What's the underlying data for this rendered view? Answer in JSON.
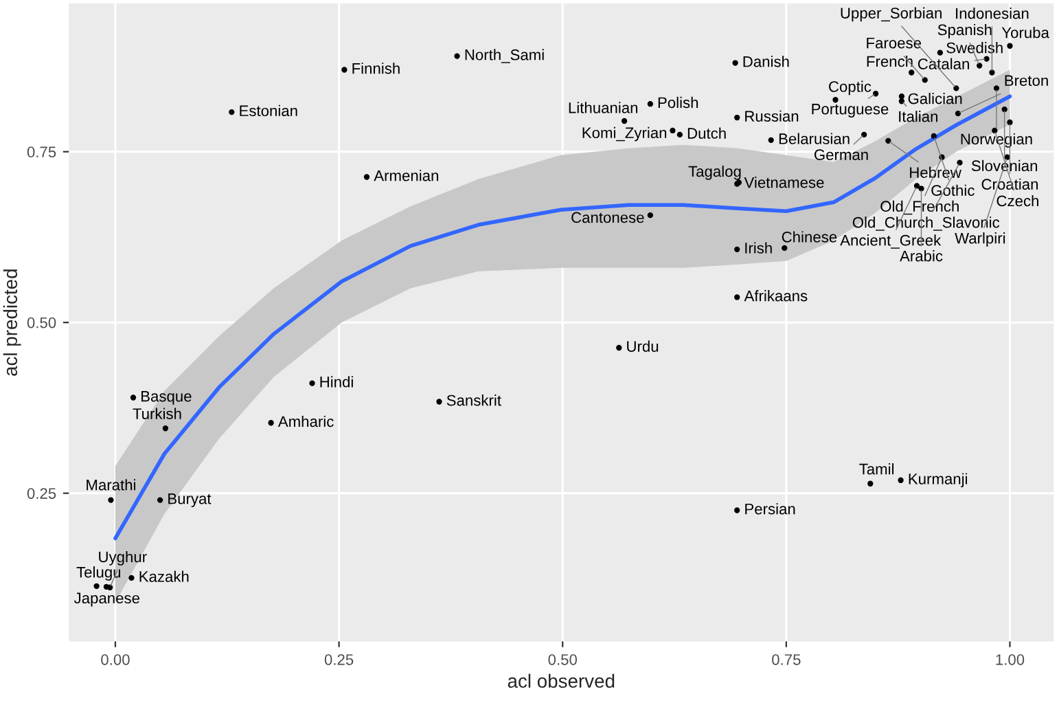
{
  "chart_data": {
    "type": "line",
    "xlabel": "acl observed",
    "ylabel": "acl predicted",
    "xlim": [
      -0.052,
      1.049
    ],
    "ylim": [
      0.033,
      0.967
    ],
    "xticks": [
      {
        "value": 0,
        "label": "0.00"
      },
      {
        "value": 0.25,
        "label": "0.25"
      },
      {
        "value": 0.5,
        "label": "0.50"
      },
      {
        "value": 0.75,
        "label": "0.75"
      },
      {
        "value": 1,
        "label": "1.00"
      }
    ],
    "yticks": [
      {
        "value": 0.25,
        "label": "0.25"
      },
      {
        "value": 0.5,
        "label": "0.50"
      },
      {
        "value": 0.75,
        "label": "0.75"
      }
    ],
    "grid": true,
    "line_style": "solid",
    "series": [
      {
        "marker": "none",
        "color": "#3366ff",
        "x": [
          0,
          0.055,
          0.116,
          0.177,
          0.253,
          0.33,
          0.406,
          0.498,
          0.574,
          0.635,
          0.696,
          0.75,
          0.803,
          0.849,
          0.895,
          0.94,
          1.0
        ],
        "values": [
          0.184,
          0.308,
          0.405,
          0.483,
          0.56,
          0.612,
          0.643,
          0.665,
          0.672,
          0.672,
          0.667,
          0.663,
          0.676,
          0.711,
          0.754,
          0.789,
          0.831
        ],
        "lower": [
          0.09,
          0.22,
          0.33,
          0.42,
          0.5,
          0.55,
          0.575,
          0.58,
          0.58,
          0.58,
          0.585,
          0.59,
          0.62,
          0.66,
          0.71,
          0.75,
          0.79
        ],
        "upper": [
          0.29,
          0.4,
          0.48,
          0.55,
          0.62,
          0.67,
          0.71,
          0.745,
          0.755,
          0.76,
          0.755,
          0.745,
          0.735,
          0.765,
          0.8,
          0.83,
          0.87
        ]
      },
      {
        "type": "scatter",
        "marker": "circle",
        "color": "#000000",
        "x": [
          0.256,
          0.382,
          0.13,
          0.693,
          0.598,
          0.569,
          0.695,
          0.623,
          0.631,
          0.733,
          0.805,
          0.85,
          0.879,
          0.879,
          0.922,
          1.0,
          0.974,
          0.966,
          0.89,
          0.98,
          0.905,
          0.94,
          0.985,
          0.837,
          0.864,
          0.915,
          0.942,
          0.994,
          1.0,
          0.983,
          0.924,
          0.944,
          0.997,
          0.896,
          0.901,
          0.281,
          0.695,
          0.697,
          0.598,
          0.695,
          0.748,
          0.695,
          0.563,
          0.02,
          0.056,
          0.22,
          0.174,
          0.362,
          -0.005,
          0.05,
          0.844,
          0.878,
          0.695,
          0.018,
          -0.021,
          -0.01,
          -0.006
        ],
        "values": [
          0.87,
          0.89,
          0.808,
          0.88,
          0.82,
          0.795,
          0.8,
          0.781,
          0.775,
          0.767,
          0.826,
          0.835,
          0.831,
          0.824,
          0.895,
          0.905,
          0.886,
          0.876,
          0.866,
          0.866,
          0.855,
          0.843,
          0.843,
          0.775,
          0.766,
          0.773,
          0.806,
          0.812,
          0.793,
          0.781,
          0.742,
          0.734,
          0.742,
          0.7,
          0.696,
          0.713,
          0.703,
          0.705,
          0.657,
          0.607,
          0.609,
          0.537,
          0.463,
          0.39,
          0.345,
          0.411,
          0.353,
          0.384,
          0.24,
          0.24,
          0.264,
          0.269,
          0.225,
          0.126,
          0.114,
          0.113,
          0.112
        ],
        "value_labels": [
          "Finnish",
          "North_Sami",
          "Estonian",
          "Danish",
          "Polish",
          "Lithuanian",
          "Russian",
          "Komi_Zyrian",
          "Dutch",
          "Belarusian",
          "Coptic",
          "Portuguese",
          "Galician",
          "Italian",
          "Swedish",
          "Yoruba",
          "Catalan",
          "Spanish",
          "French",
          "Indonesian",
          "Faroese",
          "Upper_Sorbian",
          "Norwegian",
          "German",
          "Hebrew",
          "Gothic",
          "Breton",
          "Slovenian",
          "Croatian",
          "Czech",
          "Old_French",
          "Old_Church_Slavonic",
          "Warlpiri",
          "Ancient_Greek",
          "Arabic",
          "Armenian",
          "Vietnamese",
          "Tagalog",
          "Cantonese",
          "Irish",
          "Chinese",
          "Afrikaans",
          "Urdu",
          "Basque",
          "Turkish",
          "Hindi",
          "Amharic",
          "Sanskrit",
          "Marathi",
          "Buryat",
          "Tamil",
          "Kurmanji",
          "Persian",
          "Kazakh",
          "Japanese",
          "Telugu",
          "Uyghur"
        ]
      }
    ]
  }
}
